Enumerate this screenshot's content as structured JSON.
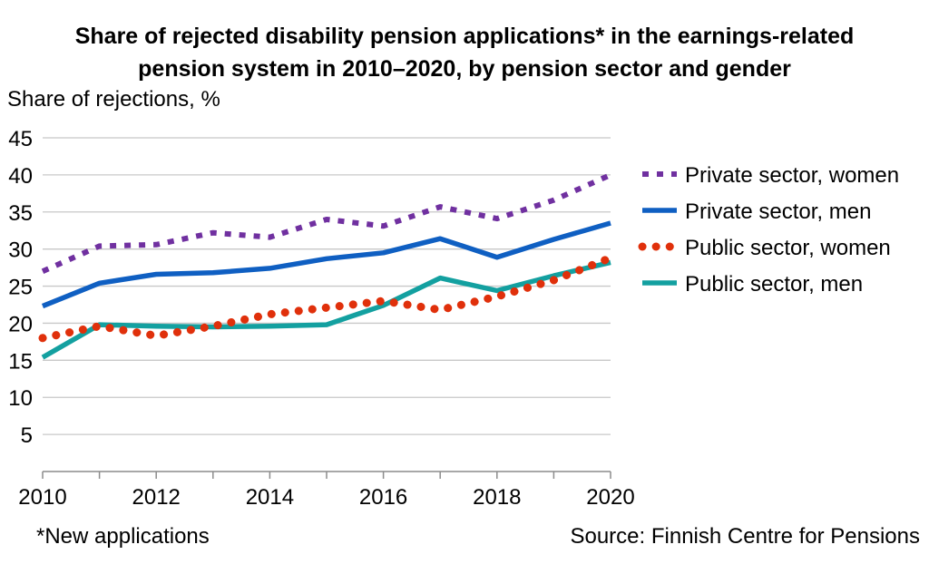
{
  "chart_data": {
    "type": "line",
    "title": "Share of rejected disability pension applications* in the earnings-related pension system in 2010–2020, by pension sector and gender",
    "title_lines": [
      "Share of rejected disability pension applications* in the earnings-related",
      "pension system in 2010–2020, by pension sector and gender"
    ],
    "ylabel": "Share of rejections, %",
    "xlabel": "",
    "ylim": [
      0,
      45
    ],
    "y_ticks": [
      5,
      10,
      15,
      20,
      25,
      30,
      35,
      40,
      45
    ],
    "x": [
      2010,
      2011,
      2012,
      2013,
      2014,
      2015,
      2016,
      2017,
      2018,
      2019,
      2020
    ],
    "x_tick_labels": [
      2010,
      2012,
      2014,
      2016,
      2018,
      2020
    ],
    "grid": "horizontal",
    "legend_position": "right",
    "series": [
      {
        "name": "Private sector, women",
        "color": "#7030A0",
        "dash": "square-dot",
        "values": [
          27.0,
          30.4,
          30.6,
          32.2,
          31.6,
          34.0,
          33.1,
          35.7,
          34.1,
          36.6,
          40.0
        ]
      },
      {
        "name": "Private sector, men",
        "color": "#0F5FC2",
        "dash": "solid",
        "values": [
          22.3,
          25.4,
          26.6,
          26.8,
          27.4,
          28.7,
          29.5,
          31.4,
          28.9,
          31.3,
          33.5
        ]
      },
      {
        "name": "Public sector, women",
        "color": "#E0300B",
        "dash": "round-dot",
        "values": [
          18.0,
          19.6,
          18.3,
          19.6,
          21.2,
          22.1,
          23.0,
          21.8,
          23.6,
          25.8,
          28.8
        ]
      },
      {
        "name": "Public sector, men",
        "color": "#13A0A0",
        "dash": "solid",
        "values": [
          15.4,
          19.8,
          19.6,
          19.5,
          19.6,
          19.8,
          22.4,
          26.1,
          24.4,
          26.4,
          28.2
        ]
      }
    ]
  },
  "footnote": "*New applications",
  "source": "Source: Finnish Centre for Pensions"
}
